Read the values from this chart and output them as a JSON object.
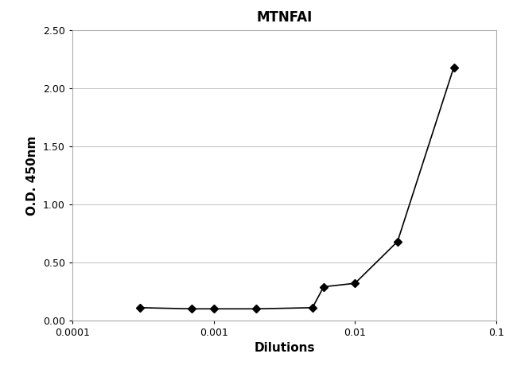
{
  "title": "MTNFAI",
  "xlabel": "Dilutions",
  "ylabel": "O.D. 450nm",
  "x_data": [
    0.0003,
    0.0007,
    0.001,
    0.002,
    0.005,
    0.006,
    0.01,
    0.02,
    0.05
  ],
  "y_data": [
    0.11,
    0.1,
    0.1,
    0.1,
    0.11,
    0.29,
    0.32,
    0.68,
    2.18
  ],
  "xlim": [
    0.0001,
    0.1
  ],
  "ylim": [
    0.0,
    2.5
  ],
  "yticks": [
    0.0,
    0.5,
    1.0,
    1.5,
    2.0,
    2.5
  ],
  "xtick_positions": [
    0.0001,
    0.001,
    0.01,
    0.1
  ],
  "xtick_labels": [
    "0.0001",
    "0.001",
    "0.01",
    "0.1"
  ],
  "line_color": "#000000",
  "marker": "D",
  "marker_color": "#000000",
  "marker_size": 5,
  "line_width": 1.2,
  "title_fontsize": 12,
  "label_fontsize": 11,
  "tick_fontsize": 9,
  "background_color": "#ffffff",
  "grid_color": "#c0c0c0",
  "spine_color": "#aaaaaa"
}
